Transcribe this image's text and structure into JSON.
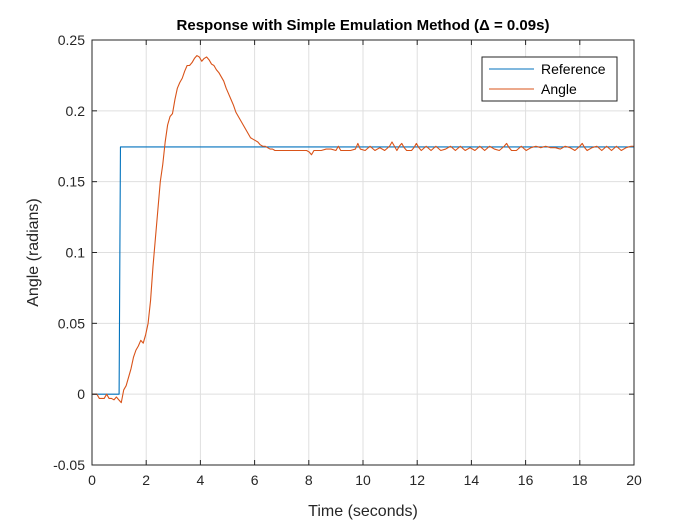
{
  "chart_data": {
    "type": "line",
    "title": "Response with Simple Emulation Method (Δ = 0.09s)",
    "xlabel": "Time (seconds)",
    "ylabel": "Angle (radians)",
    "xlim": [
      0,
      20
    ],
    "ylim": [
      -0.05,
      0.25
    ],
    "xticks": [
      0,
      2,
      4,
      6,
      8,
      10,
      12,
      14,
      16,
      18,
      20
    ],
    "xtick_labels": [
      "0",
      "2",
      "4",
      "6",
      "8",
      "10",
      "12",
      "14",
      "16",
      "18",
      "20"
    ],
    "yticks": [
      -0.05,
      0,
      0.05,
      0.1,
      0.15,
      0.2,
      0.25
    ],
    "ytick_labels": [
      "-0.05",
      "0",
      "0.05",
      "0.1",
      "0.15",
      "0.2",
      "0.25"
    ],
    "grid": true,
    "legend_position": "top-right",
    "series": [
      {
        "name": "Reference",
        "color": "#0072BD",
        "points": [
          [
            0,
            0
          ],
          [
            1.0,
            0
          ],
          [
            1.05,
            0.1745
          ],
          [
            20,
            0.1745
          ]
        ]
      },
      {
        "name": "Angle",
        "color": "#D95319",
        "points": [
          [
            0,
            0
          ],
          [
            0.18,
            0
          ],
          [
            0.27,
            -0.003
          ],
          [
            0.36,
            -0.003
          ],
          [
            0.45,
            -0.003
          ],
          [
            0.54,
            0
          ],
          [
            0.63,
            -0.003
          ],
          [
            0.72,
            -0.003
          ],
          [
            0.81,
            -0.004
          ],
          [
            0.9,
            -0.002
          ],
          [
            0.99,
            -0.004
          ],
          [
            1.08,
            -0.006
          ],
          [
            1.17,
            0.003
          ],
          [
            1.26,
            0.006
          ],
          [
            1.35,
            0.012
          ],
          [
            1.44,
            0.018
          ],
          [
            1.53,
            0.026
          ],
          [
            1.62,
            0.031
          ],
          [
            1.71,
            0.034
          ],
          [
            1.8,
            0.038
          ],
          [
            1.89,
            0.036
          ],
          [
            1.98,
            0.042
          ],
          [
            2.07,
            0.05
          ],
          [
            2.16,
            0.066
          ],
          [
            2.25,
            0.09
          ],
          [
            2.34,
            0.11
          ],
          [
            2.43,
            0.13
          ],
          [
            2.52,
            0.15
          ],
          [
            2.61,
            0.162
          ],
          [
            2.7,
            0.178
          ],
          [
            2.79,
            0.19
          ],
          [
            2.88,
            0.196
          ],
          [
            2.97,
            0.198
          ],
          [
            3.06,
            0.208
          ],
          [
            3.15,
            0.216
          ],
          [
            3.24,
            0.22
          ],
          [
            3.33,
            0.223
          ],
          [
            3.42,
            0.228
          ],
          [
            3.51,
            0.232
          ],
          [
            3.6,
            0.232
          ],
          [
            3.69,
            0.234
          ],
          [
            3.78,
            0.237
          ],
          [
            3.87,
            0.239
          ],
          [
            3.96,
            0.238
          ],
          [
            4.05,
            0.235
          ],
          [
            4.14,
            0.237
          ],
          [
            4.23,
            0.238
          ],
          [
            4.32,
            0.236
          ],
          [
            4.41,
            0.233
          ],
          [
            4.5,
            0.232
          ],
          [
            4.59,
            0.229
          ],
          [
            4.68,
            0.227
          ],
          [
            4.77,
            0.224
          ],
          [
            4.86,
            0.221
          ],
          [
            4.95,
            0.216
          ],
          [
            5.04,
            0.212
          ],
          [
            5.13,
            0.208
          ],
          [
            5.22,
            0.204
          ],
          [
            5.31,
            0.199
          ],
          [
            5.4,
            0.196
          ],
          [
            5.49,
            0.193
          ],
          [
            5.58,
            0.19
          ],
          [
            5.67,
            0.187
          ],
          [
            5.76,
            0.184
          ],
          [
            5.85,
            0.181
          ],
          [
            5.94,
            0.18
          ],
          [
            6.03,
            0.179
          ],
          [
            6.12,
            0.178
          ],
          [
            6.21,
            0.176
          ],
          [
            6.3,
            0.175
          ],
          [
            6.39,
            0.175
          ],
          [
            6.48,
            0.174
          ],
          [
            6.57,
            0.173
          ],
          [
            6.66,
            0.173
          ],
          [
            6.75,
            0.172
          ],
          [
            6.84,
            0.172
          ],
          [
            7.2,
            0.172
          ],
          [
            7.56,
            0.172
          ],
          [
            7.92,
            0.172
          ],
          [
            8.01,
            0.171
          ],
          [
            8.1,
            0.169
          ],
          [
            8.19,
            0.172
          ],
          [
            8.28,
            0.172
          ],
          [
            8.46,
            0.172
          ],
          [
            8.64,
            0.173
          ],
          [
            8.82,
            0.173
          ],
          [
            9.0,
            0.172
          ],
          [
            9.09,
            0.175
          ],
          [
            9.18,
            0.172
          ],
          [
            9.36,
            0.172
          ],
          [
            9.54,
            0.172
          ],
          [
            9.72,
            0.173
          ],
          [
            9.81,
            0.177
          ],
          [
            9.9,
            0.173
          ],
          [
            10.08,
            0.172
          ],
          [
            10.26,
            0.175
          ],
          [
            10.44,
            0.172
          ],
          [
            10.62,
            0.174
          ],
          [
            10.8,
            0.172
          ],
          [
            10.98,
            0.175
          ],
          [
            11.07,
            0.178
          ],
          [
            11.16,
            0.175
          ],
          [
            11.25,
            0.172
          ],
          [
            11.34,
            0.175
          ],
          [
            11.43,
            0.177
          ],
          [
            11.52,
            0.174
          ],
          [
            11.61,
            0.172
          ],
          [
            11.79,
            0.172
          ],
          [
            11.88,
            0.174
          ],
          [
            11.97,
            0.177
          ],
          [
            12.06,
            0.174
          ],
          [
            12.15,
            0.172
          ],
          [
            12.33,
            0.175
          ],
          [
            12.51,
            0.172
          ],
          [
            12.69,
            0.175
          ],
          [
            12.87,
            0.172
          ],
          [
            13.05,
            0.173
          ],
          [
            13.23,
            0.175
          ],
          [
            13.41,
            0.172
          ],
          [
            13.59,
            0.175
          ],
          [
            13.77,
            0.172
          ],
          [
            13.95,
            0.174
          ],
          [
            14.13,
            0.172
          ],
          [
            14.31,
            0.175
          ],
          [
            14.49,
            0.172
          ],
          [
            14.67,
            0.175
          ],
          [
            14.85,
            0.173
          ],
          [
            15.03,
            0.172
          ],
          [
            15.21,
            0.175
          ],
          [
            15.3,
            0.177
          ],
          [
            15.39,
            0.174
          ],
          [
            15.48,
            0.172
          ],
          [
            15.66,
            0.172
          ],
          [
            15.84,
            0.175
          ],
          [
            16.02,
            0.172
          ],
          [
            16.2,
            0.174
          ],
          [
            16.38,
            0.175
          ],
          [
            16.56,
            0.174
          ],
          [
            16.74,
            0.175
          ],
          [
            16.92,
            0.174
          ],
          [
            17.1,
            0.174
          ],
          [
            17.28,
            0.173
          ],
          [
            17.46,
            0.175
          ],
          [
            17.64,
            0.174
          ],
          [
            17.82,
            0.172
          ],
          [
            18.0,
            0.175
          ],
          [
            18.09,
            0.177
          ],
          [
            18.18,
            0.174
          ],
          [
            18.27,
            0.172
          ],
          [
            18.45,
            0.174
          ],
          [
            18.63,
            0.175
          ],
          [
            18.81,
            0.172
          ],
          [
            18.99,
            0.175
          ],
          [
            19.17,
            0.172
          ],
          [
            19.35,
            0.175
          ],
          [
            19.53,
            0.172
          ],
          [
            19.71,
            0.174
          ],
          [
            19.89,
            0.175
          ],
          [
            20.0,
            0.175
          ]
        ]
      }
    ]
  }
}
